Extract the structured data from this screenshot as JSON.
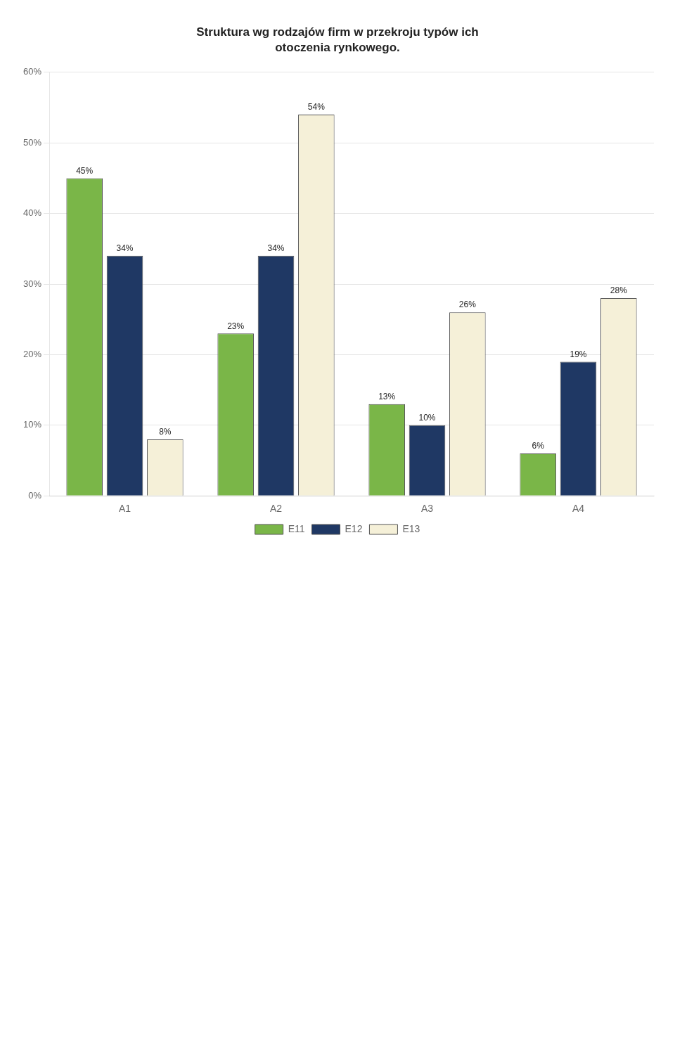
{
  "chart_data": {
    "type": "bar",
    "title": "Struktura wg rodzajów firm w przekroju typów ich",
    "subtitle": "otoczenia rynkowego.",
    "categories": [
      "A1",
      "A2",
      "A3",
      "A4"
    ],
    "series": [
      {
        "name": "E11",
        "color": "#7ab648",
        "values": [
          45,
          23,
          13,
          6
        ],
        "value_labels": [
          "45%",
          "23%",
          "13%",
          "6%"
        ]
      },
      {
        "name": "E12",
        "color": "#1f3864",
        "values": [
          34,
          34,
          10,
          19
        ],
        "value_labels": [
          "34%",
          "34%",
          "10%",
          "19%"
        ]
      },
      {
        "name": "E13",
        "color": "#f5f0d8",
        "values": [
          8,
          54,
          26,
          28
        ],
        "value_labels": [
          "8%",
          "54%",
          "26%",
          "28%"
        ]
      }
    ],
    "ylim": [
      0,
      60
    ],
    "yticks": [
      {
        "value": 0,
        "label": "0%"
      },
      {
        "value": 10,
        "label": "10%"
      },
      {
        "value": 20,
        "label": "20%"
      },
      {
        "value": 30,
        "label": "30%"
      },
      {
        "value": 40,
        "label": "40%"
      },
      {
        "value": 50,
        "label": "50%"
      },
      {
        "value": 60,
        "label": "60%"
      }
    ],
    "grid": true,
    "legend": "bottom",
    "data_labels": true
  }
}
